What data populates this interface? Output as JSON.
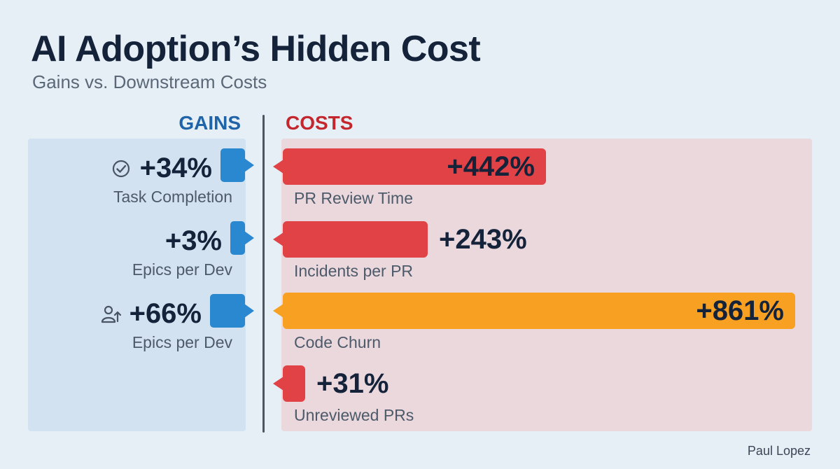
{
  "header": {
    "title": "AI Adoption’s Hidden Cost",
    "subtitle": "Gains vs. Downstream Costs"
  },
  "columns": {
    "gains": "GAINS",
    "costs": "COSTS"
  },
  "colors": {
    "gain": "#2a88d0",
    "cost_red": "#e04245",
    "cost_orange": "#f8a021"
  },
  "chart_data": {
    "type": "bar",
    "title": "AI Adoption’s Hidden Cost",
    "subtitle": "Gains vs. Downstream Costs",
    "gains": {
      "name": "GAINS",
      "items": [
        {
          "value_label": "+34%",
          "value": 34,
          "label": "Task Completion",
          "icon": "check-circle-icon"
        },
        {
          "value_label": "+3%",
          "value": 3,
          "label": "Epics per Dev",
          "icon": ""
        },
        {
          "value_label": "+66%",
          "value": 66,
          "label": "Epics per Dev",
          "icon": "user-growth-icon"
        }
      ]
    },
    "costs": {
      "name": "COSTS",
      "items": [
        {
          "value_label": "+442%",
          "value": 442,
          "label": "PR Review Time",
          "color": "#e04245",
          "label_inside": true
        },
        {
          "value_label": "+243%",
          "value": 243,
          "label": "Incidents per PR",
          "color": "#e04245",
          "label_inside": false
        },
        {
          "value_label": "+861%",
          "value": 861,
          "label": "Code Churn",
          "color": "#f8a021",
          "label_inside": true
        },
        {
          "value_label": "+31%",
          "value": 31,
          "label": "Unreviewed PRs",
          "color": "#e04245",
          "label_inside": false
        }
      ]
    },
    "xmax": 861
  },
  "footer": {
    "author": "Paul Lopez"
  }
}
